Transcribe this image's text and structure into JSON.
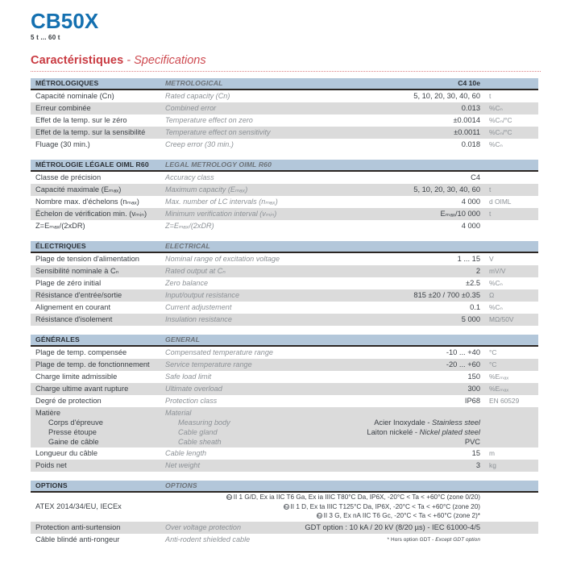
{
  "page": {
    "title": "CB50X",
    "capacity_range": "5 t ... 60 t",
    "heading_fr": "Caractéristiques",
    "heading_sep": " - ",
    "heading_en": "Specifications"
  },
  "colors": {
    "accent_blue": "#1470b0",
    "accent_red": "#c93a41",
    "header_bar_blue": "#b3c7da",
    "stripe_gray": "#dbdbdb"
  },
  "sections": [
    {
      "header": {
        "fr": "MÉTROLOGIQUES",
        "en": "METROLOGICAL",
        "value": "C4 10e"
      },
      "rows": [
        {
          "fr": "Capacité nominale (Cn)",
          "en": "Rated capacity (Cn)",
          "value": "5, 10, 20, 30, 40, 60",
          "unit": "t"
        },
        {
          "fr": "Erreur combinée",
          "en": "Combined error",
          "value": "0.013",
          "unit": "%Cₙ"
        },
        {
          "fr": "Effet de la temp. sur le zéro",
          "en": "Temperature effect on zero",
          "value": "±0.0014",
          "unit": "%Cₙ/°C"
        },
        {
          "fr": "Effet de la temp. sur la sensibilité",
          "en": "Temperature effect on sensitivity",
          "value": "±0.0011",
          "unit": "%Cₙ/°C"
        },
        {
          "fr": "Fluage (30 min.)",
          "en": "Creep error (30 min.)",
          "value": "0.018",
          "unit": "%Cₙ"
        }
      ]
    },
    {
      "header": {
        "fr": "MÉTROLOGIE LÉGALE OIML R60",
        "en": "LEGAL METROLOGY OIML R60",
        "value": ""
      },
      "rows": [
        {
          "fr": "Classe de précision",
          "en": "Accuracy class",
          "value": "C4",
          "unit": ""
        },
        {
          "fr": "Capacité maximale (Eₘₐₓ)",
          "en": "Maximum capacity (Eₘₐₓ)",
          "value": "5, 10, 20, 30, 40, 60",
          "unit": "t"
        },
        {
          "fr": "Nombre max. d'échelons (nₘₐₓ)",
          "en": "Max. number of LC intervals (nₘₐₓ)",
          "value": "4 000",
          "unit": "d OIML"
        },
        {
          "fr": "Échelon de vérification min. (vₘᵢₙ)",
          "en": "Minimum verification interval (vₘᵢₙ)",
          "value": "Eₘₐₓ/10 000",
          "unit": "t"
        },
        {
          "fr": "Z=Eₘₐₓ/(2xDR)",
          "en": "Z=Eₘₐₓ/(2xDR)",
          "value": "4 000",
          "unit": ""
        }
      ]
    },
    {
      "header": {
        "fr": "ÉLECTRIQUES",
        "en": "ELECTRICAL",
        "value": ""
      },
      "rows": [
        {
          "fr": "Plage de tension d'alimentation",
          "en": "Nominal range of excitation voltage",
          "value": "1 ... 15",
          "unit": "V"
        },
        {
          "fr": "Sensibilité nominale à Cₙ",
          "en": "Rated output at Cₙ",
          "value": "2",
          "unit": "mV/V"
        },
        {
          "fr": "Plage de zéro initial",
          "en": "Zero balance",
          "value": "±2.5",
          "unit": "%Cₙ"
        },
        {
          "fr": "Résistance d'entrée/sortie",
          "en": "Input/output resistance",
          "value": "815 ±20 / 700 ±0.35",
          "unit": "Ω"
        },
        {
          "fr": "Alignement en courant",
          "en": "Current adjustement",
          "value": "0.1",
          "unit": "%Cₙ"
        },
        {
          "fr": "Résistance d'isolement",
          "en": "Insulation resistance",
          "value": "5 000",
          "unit": "MΩ/50V"
        }
      ]
    },
    {
      "header": {
        "fr": "GÉNÉRALES",
        "en": "GENERAL",
        "value": ""
      },
      "rows": [
        {
          "fr": "Plage de temp. compensée",
          "en": "Compensated temperature range",
          "value": "-10 ... +40",
          "unit": "°C"
        },
        {
          "fr": "Plage de temp. de fonctionnement",
          "en": "Service temperature range",
          "value": "-20 ... +60",
          "unit": "°C"
        },
        {
          "fr": "Charge limite admissible",
          "en": "Safe load limit",
          "value": "150",
          "unit": "%Eₘₐₓ"
        },
        {
          "fr": "Charge ultime avant rupture",
          "en": "Ultimate overload",
          "value": "300",
          "unit": "%Eₘₐₓ"
        },
        {
          "fr": "Degré de protection",
          "en": "Protection class",
          "value": "IP68",
          "unit": "EN 60529"
        }
      ],
      "material": {
        "fr": "Matière",
        "en": "Material",
        "items": [
          {
            "fr": "Corps d'épreuve",
            "en": "Measuring body",
            "value_fr": "Acier Inoxydale - ",
            "value_en": "Stainless steel"
          },
          {
            "fr": "Presse étoupe",
            "en": "Cable gland",
            "value_fr": "Laiton nickelé - ",
            "value_en": "Nickel plated steel"
          },
          {
            "fr": "Gaine de câble",
            "en": "Cable sheath",
            "value_fr": "PVC",
            "value_en": ""
          }
        ]
      },
      "rows_after": [
        {
          "fr": "Longueur du câble",
          "en": "Cable length",
          "value": "15",
          "unit": "m"
        },
        {
          "fr": "Poids net",
          "en": "Net weight",
          "value": "3",
          "unit": "kg"
        }
      ]
    },
    {
      "header": {
        "fr": "OPTIONS",
        "en": "OPTIONS",
        "value": ""
      },
      "atex": {
        "fr": "ATEX 2014/34/EU, IECEx",
        "lines": [
          "II 1 G/D, Ex ia IIC T6 Ga, Ex ia IIIC T80°C Da, IP6X, -20°C < Ta < +60°C (zone 0/20)",
          "II 1 D, Ex ta IIIC T125°C Da, IP6X, -20°C < Ta < +60°C (zone 20)",
          "II 3 G, Ex nA IIC T6 Gc, -20°C < Ta < +60°C (zone 2)*"
        ]
      },
      "rows": [
        {
          "fr": "Protection anti-surtension",
          "en": "Over voltage protection",
          "value": "GDT option : 10 kA / 20 kV (8/20 µs) - IEC 61000-4/5",
          "unit": ""
        },
        {
          "fr": "Câble blindé anti-rongeur",
          "en": "Anti-rodent shielded cable",
          "value": "",
          "unit": ""
        }
      ],
      "footnote": {
        "fr": "* Hors option GDT - ",
        "en": "Except GDT option"
      }
    }
  ]
}
